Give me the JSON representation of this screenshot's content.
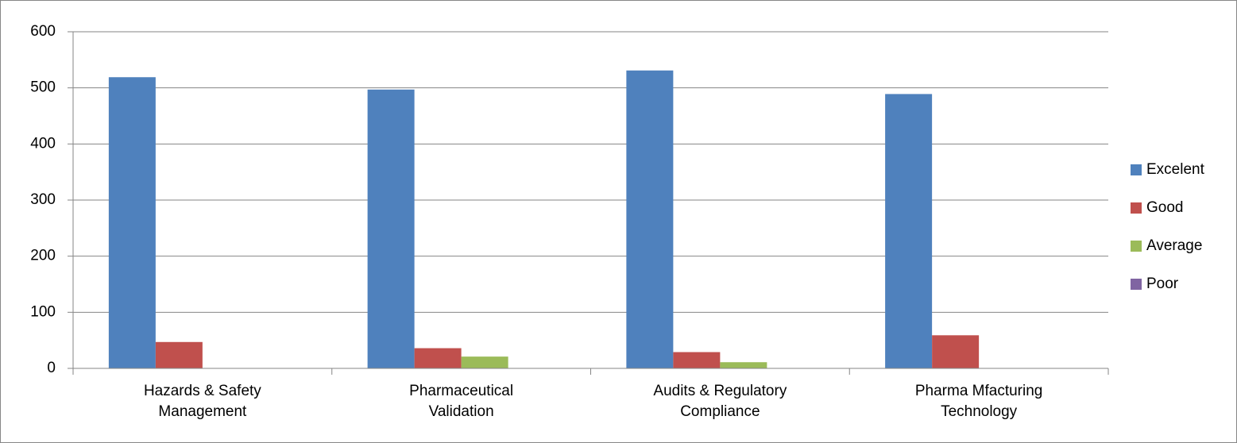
{
  "chart_data": {
    "type": "bar",
    "categories": [
      "Hazards & Safety Management",
      "Pharmaceutical Validation",
      "Audits & Regulatory Compliance",
      "Pharma Mfacturing Technology"
    ],
    "series": [
      {
        "name": "Excelent",
        "color": "#4f81bd",
        "values": [
          519,
          497,
          531,
          489
        ]
      },
      {
        "name": "Good",
        "color": "#c0504d",
        "values": [
          47,
          36,
          29,
          59
        ]
      },
      {
        "name": "Average",
        "color": "#9bbb59",
        "values": [
          0,
          21,
          11,
          0
        ]
      },
      {
        "name": "Poor",
        "color": "#8064a2",
        "values": [
          0,
          0,
          0,
          0
        ]
      }
    ],
    "ylim": [
      0,
      600
    ],
    "yticks": [
      0,
      100,
      200,
      300,
      400,
      500,
      600
    ],
    "grid": true,
    "legend": "right"
  }
}
